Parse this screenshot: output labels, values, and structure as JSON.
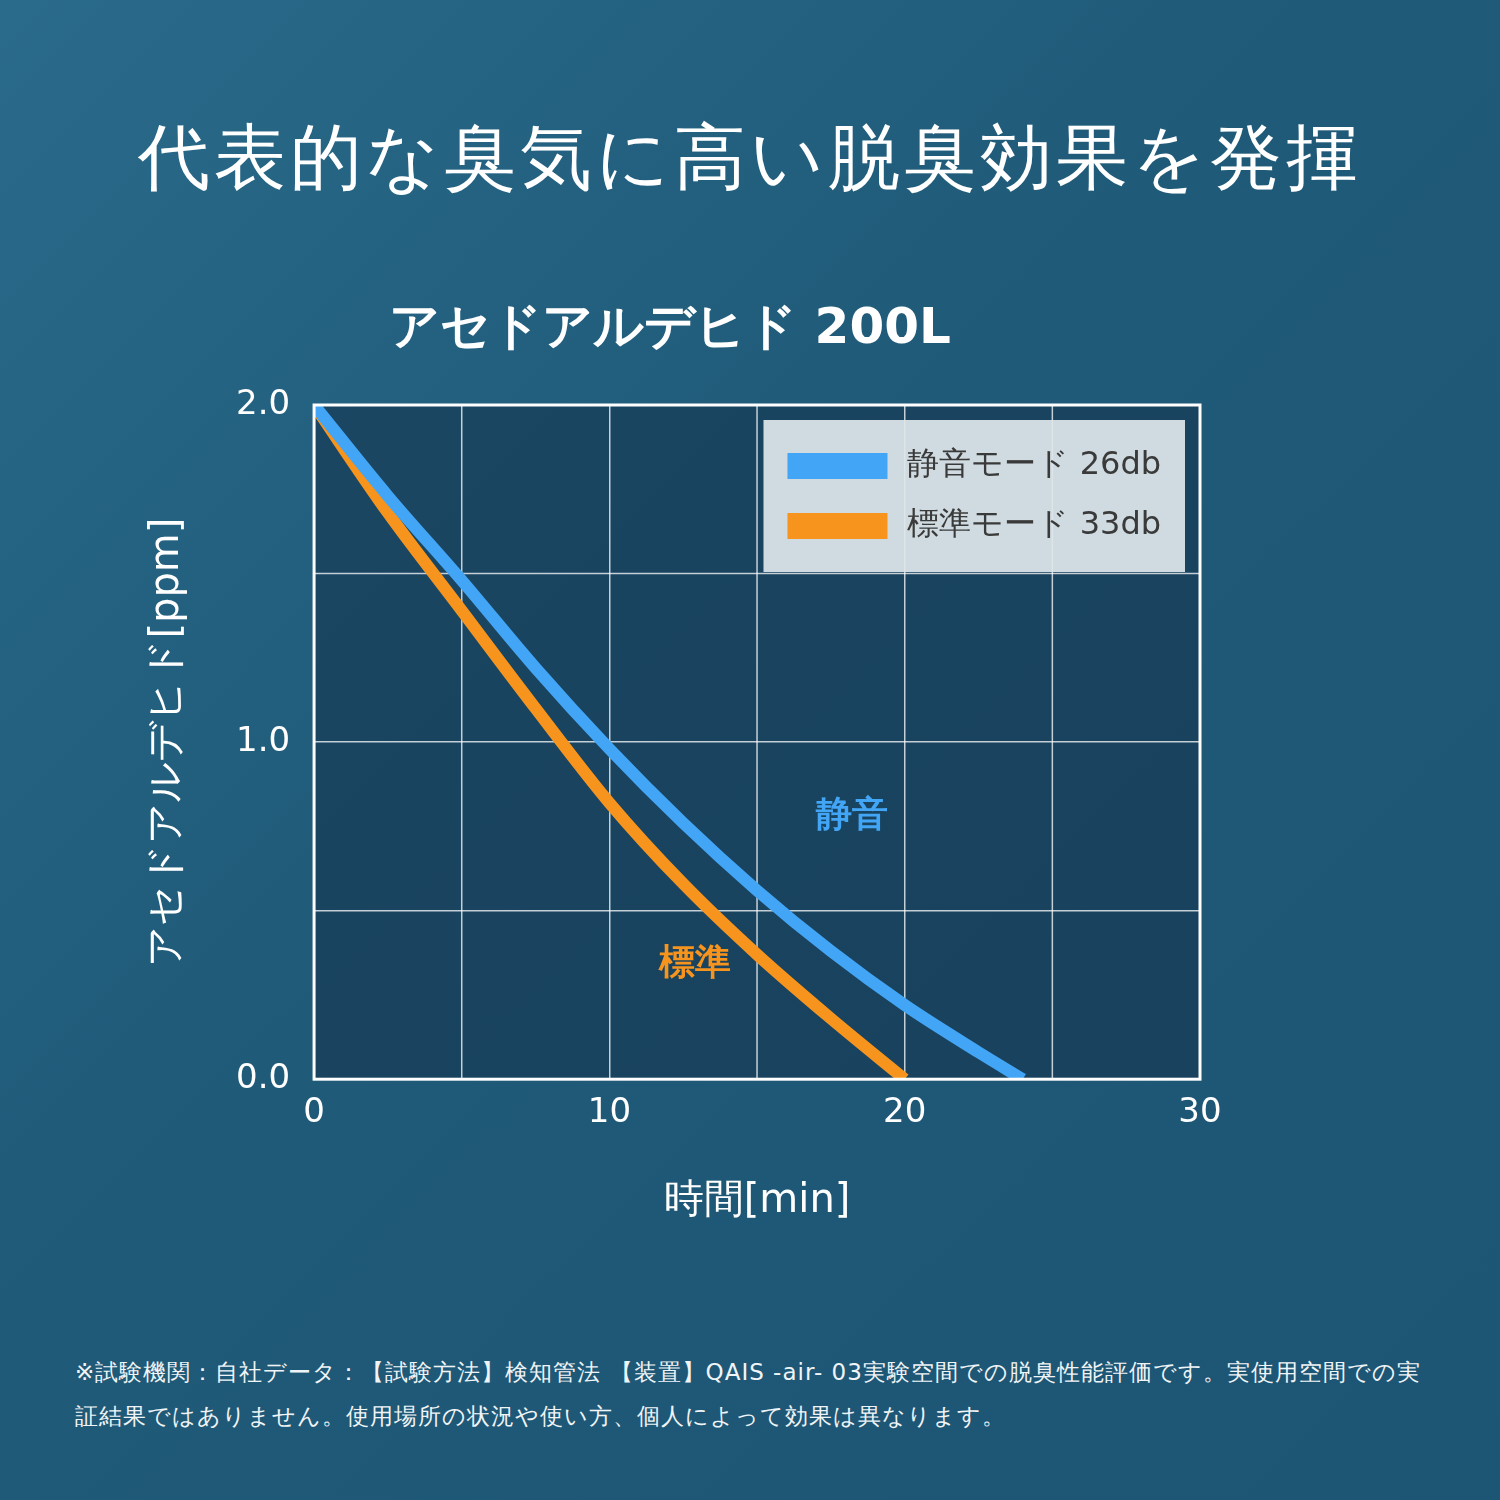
{
  "chart_data": {
    "type": "line",
    "title": "代表的な臭気に高い脱臭効果を発揮",
    "subtitle": "アセドアルデヒド 200L",
    "x_label": "時間[min]",
    "y_label": "アセドアルデヒド[ppm]",
    "x": [
      0,
      2.5,
      5,
      7.5,
      10,
      12.5,
      15,
      17.5,
      20,
      22.5,
      24
    ],
    "series": [
      {
        "name": "静音モード 26db",
        "color": "#42a5f5",
        "values": [
          2.0,
          1.73,
          1.48,
          1.22,
          0.98,
          0.76,
          0.56,
          0.38,
          0.22,
          0.08,
          0.0
        ]
      },
      {
        "name": "標準モード 33db",
        "color": "#f7941d",
        "values": [
          2.0,
          1.68,
          1.39,
          1.1,
          0.82,
          0.58,
          0.37,
          0.18,
          0.0,
          null,
          null
        ]
      }
    ],
    "annotations": [
      {
        "text": "静音",
        "x": 18.2,
        "y": 0.78,
        "color": "#42a5f5"
      },
      {
        "text": "標準",
        "x": 12.9,
        "y": 0.34,
        "color": "#f7941d"
      }
    ],
    "xlim": [
      0,
      30
    ],
    "xticks": [
      0,
      10,
      20,
      30
    ],
    "ylim": [
      0,
      2
    ],
    "yticks": [
      {
        "value": 0,
        "label": "0.0"
      },
      {
        "value": 1,
        "label": "1.0"
      },
      {
        "value": 2,
        "label": "2.0"
      }
    ],
    "grid": true,
    "legend": "upper right",
    "footnote": "※試験機関：自社データ：【試験方法】検知管法 【装置】QAIS -air- 03実験空間での脱臭性能評価です。実使用空間での実証結果ではありません。使用場所の状況や使い方、個人によって効果は異なります。"
  }
}
